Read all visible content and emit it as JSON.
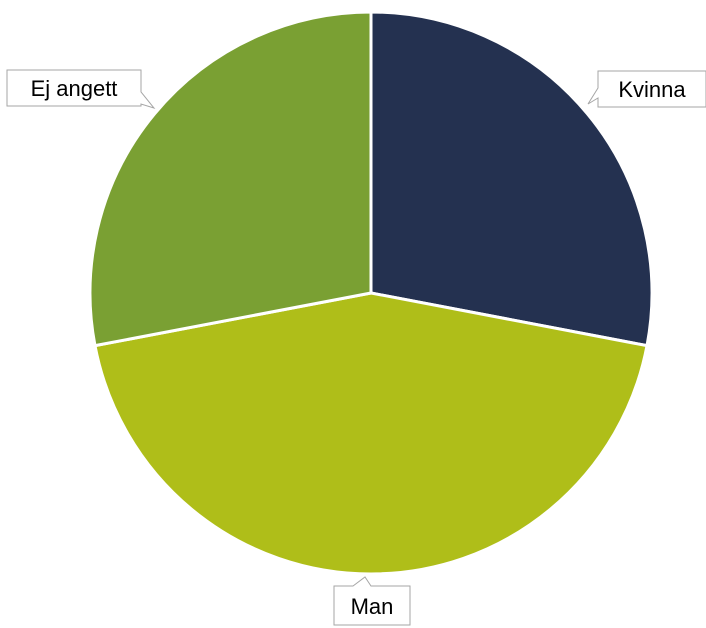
{
  "chart_data": {
    "type": "pie",
    "slices": [
      {
        "label": "Kvinna",
        "value": 28,
        "color": "#243150"
      },
      {
        "label": "Man",
        "value": 44,
        "color": "#afbe19"
      },
      {
        "label": "Ej angett",
        "value": 28,
        "color": "#7aa033"
      }
    ],
    "title": "",
    "legend": "none",
    "data_labels": "category-name callouts"
  }
}
